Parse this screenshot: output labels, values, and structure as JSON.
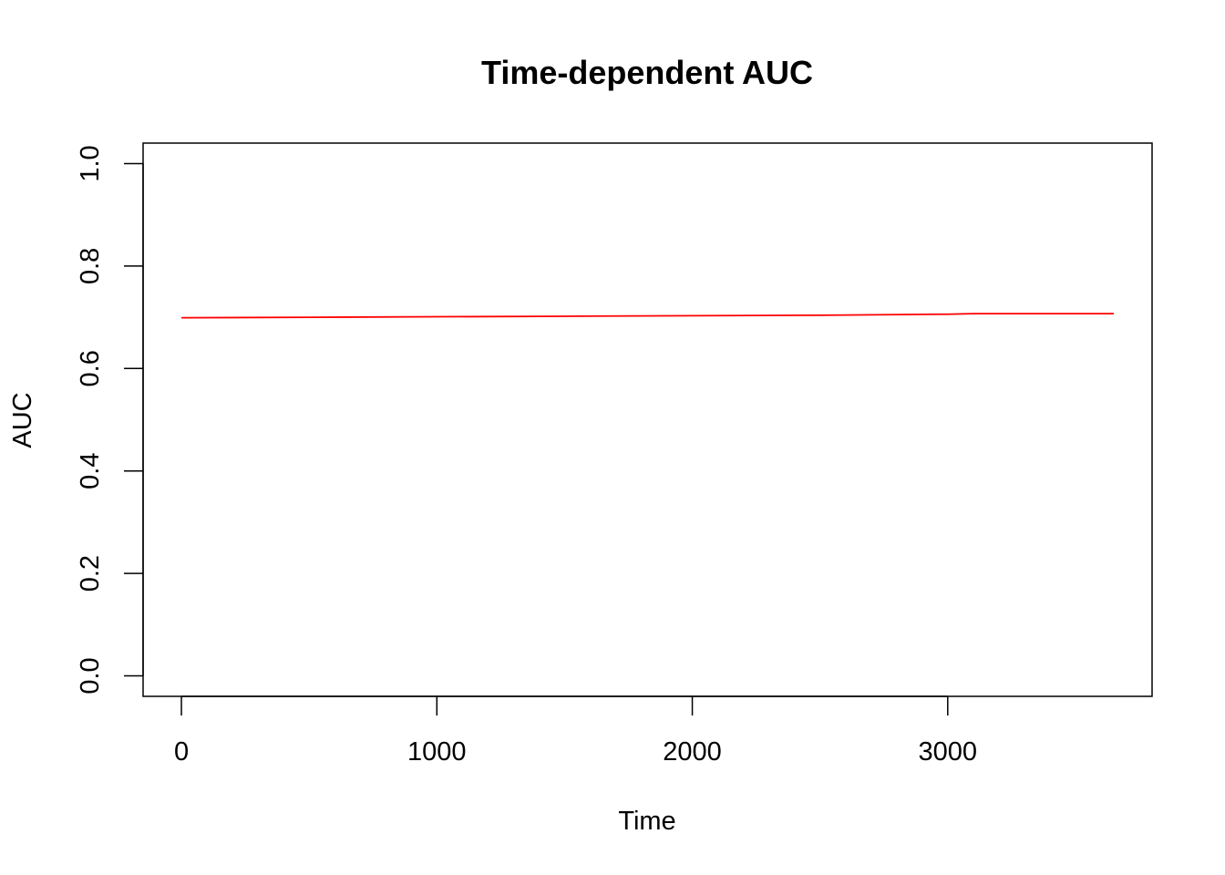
{
  "chart_data": {
    "type": "line",
    "title": "Time-dependent AUC",
    "xlabel": "Time",
    "ylabel": "AUC",
    "xlim": [
      -150,
      3800
    ],
    "ylim": [
      -0.04,
      1.04
    ],
    "x_ticks": [
      0,
      1000,
      2000,
      3000
    ],
    "x_tick_labels": [
      "0",
      "1000",
      "2000",
      "3000"
    ],
    "y_ticks": [
      0.0,
      0.2,
      0.4,
      0.6,
      0.8,
      1.0
    ],
    "y_tick_labels": [
      "0.0",
      "0.2",
      "0.4",
      "0.6",
      "0.8",
      "1.0"
    ],
    "grid": false,
    "legend": "none",
    "series": [
      {
        "color": "#ff0000",
        "x": [
          0,
          500,
          1000,
          1500,
          2000,
          2500,
          3000,
          3100,
          3650
        ],
        "y": [
          0.699,
          0.7,
          0.701,
          0.702,
          0.703,
          0.704,
          0.706,
          0.707,
          0.707
        ]
      }
    ]
  }
}
